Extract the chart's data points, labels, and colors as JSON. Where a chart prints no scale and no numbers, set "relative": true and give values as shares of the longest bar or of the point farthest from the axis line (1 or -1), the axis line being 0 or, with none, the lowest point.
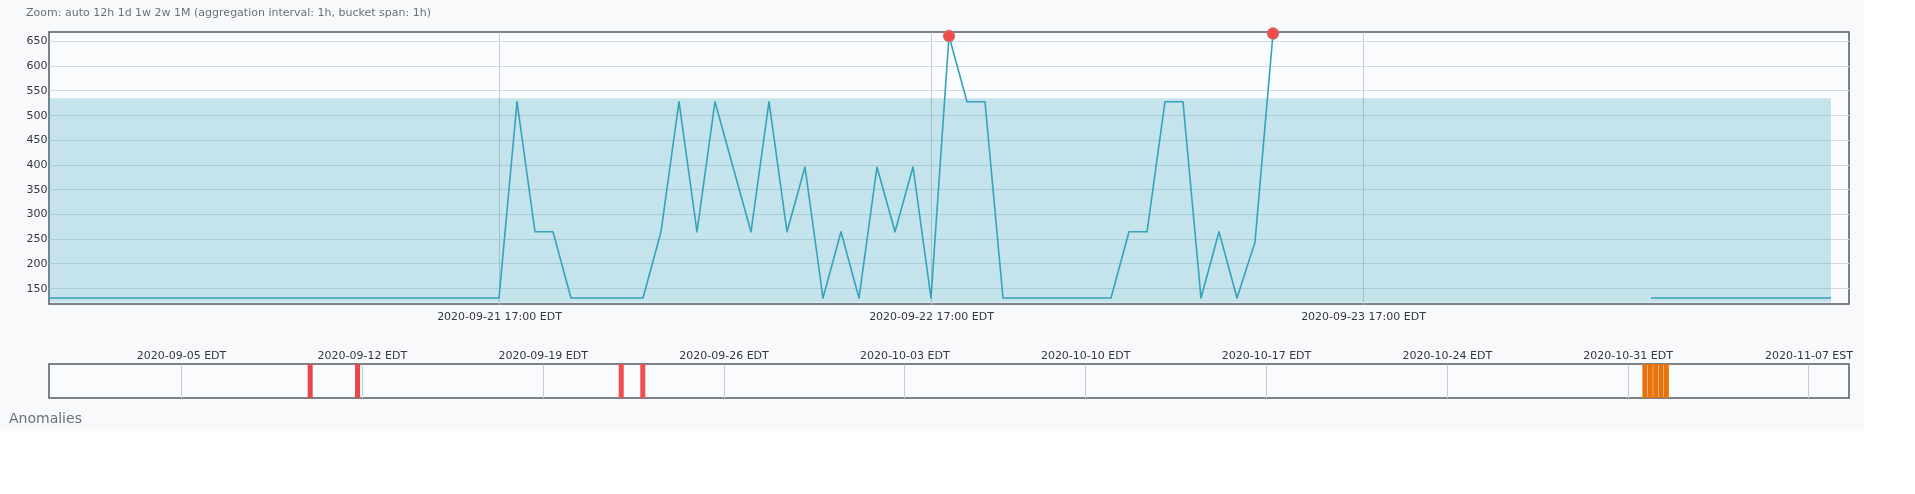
{
  "chart_data": [
    {
      "type": "line",
      "title": "Zoom: auto 12h 1d 1w 2w 1M   (aggregation interval: 1h, bucket span: 1h)",
      "x": [
        "2020-09-20T16:00",
        "2020-09-20T17:00",
        "2020-09-20T18:00",
        "2020-09-20T19:00",
        "2020-09-20T20:00",
        "2020-09-20T21:00",
        "2020-09-20T22:00",
        "2020-09-20T23:00",
        "2020-09-21T00:00",
        "2020-09-21T01:00",
        "2020-09-21T02:00",
        "2020-09-21T03:00",
        "2020-09-21T04:00",
        "2020-09-21T05:00",
        "2020-09-21T06:00",
        "2020-09-21T07:00",
        "2020-09-21T08:00",
        "2020-09-21T09:00",
        "2020-09-21T10:00",
        "2020-09-21T11:00",
        "2020-09-21T12:00",
        "2020-09-21T13:00",
        "2020-09-21T14:00",
        "2020-09-21T15:00",
        "2020-09-21T16:00",
        "2020-09-21T17:00",
        "2020-09-21T18:00",
        "2020-09-21T19:00",
        "2020-09-21T20:00",
        "2020-09-21T21:00",
        "2020-09-21T22:00",
        "2020-09-21T23:00",
        "2020-09-22T00:00",
        "2020-09-22T01:00",
        "2020-09-22T02:00",
        "2020-09-22T03:00",
        "2020-09-22T04:00",
        "2020-09-22T05:00",
        "2020-09-22T06:00",
        "2020-09-22T07:00",
        "2020-09-22T08:00",
        "2020-09-22T09:00",
        "2020-09-22T10:00",
        "2020-09-22T11:00",
        "2020-09-22T12:00",
        "2020-09-22T13:00",
        "2020-09-22T14:00",
        "2020-09-22T15:00",
        "2020-09-22T16:00",
        "2020-09-22T17:00",
        "2020-09-22T18:00",
        "2020-09-22T19:00",
        "2020-09-22T20:00",
        "2020-09-22T21:00",
        "2020-09-22T22:00",
        "2020-09-22T23:00",
        "2020-09-23T00:00",
        "2020-09-23T01:00",
        "2020-09-23T02:00",
        "2020-09-23T03:00",
        "2020-09-23T04:00",
        "2020-09-23T05:00",
        "2020-09-23T06:00",
        "2020-09-23T07:00",
        "2020-09-23T08:00",
        "2020-09-23T09:00",
        "2020-09-23T10:00",
        "2020-09-23T11:00",
        "2020-09-23T12:00",
        "2020-09-23T13:00",
        "2020-09-23T14:00",
        "2020-09-23T15:00",
        "2020-09-23T16:00",
        "2020-09-23T17:00",
        "2020-09-23T18:00",
        "2020-09-23T19:00",
        "2020-09-23T20:00",
        "2020-09-23T21:00",
        "2020-09-23T22:00",
        "2020-09-23T23:00",
        "2020-09-24T00:00",
        "2020-09-24T01:00",
        "2020-09-24T02:00",
        "2020-09-24T03:00",
        "2020-09-24T04:00",
        "2020-09-24T05:00",
        "2020-09-24T06:00",
        "2020-09-24T07:00",
        "2020-09-24T08:00",
        "2020-09-24T09:00",
        "2020-09-24T10:00",
        "2020-09-24T11:00",
        "2020-09-24T12:00",
        "2020-09-24T13:00",
        "2020-09-24T14:00",
        "2020-09-24T15:00",
        "2020-09-24T16:00",
        "2020-09-24T17:00",
        "2020-09-24T18:00",
        "2020-09-24T19:00"
      ],
      "series": [
        {
          "type": "line",
          "color": "#35a3ba",
          "values": [
            130,
            130,
            130,
            130,
            130,
            130,
            130,
            130,
            130,
            130,
            130,
            130,
            130,
            130,
            130,
            130,
            130,
            130,
            130,
            130,
            130,
            130,
            130,
            130,
            130,
            130,
            527,
            264,
            264,
            130,
            130,
            130,
            130,
            130,
            264,
            527,
            264,
            527,
            395,
            264,
            527,
            264,
            395,
            130,
            264,
            130,
            395,
            264,
            395,
            130,
            660,
            527,
            527,
            130,
            130,
            130,
            130,
            130,
            130,
            130,
            264,
            264,
            527,
            527,
            130,
            264,
            130,
            243,
            665,
            null,
            null,
            null,
            null,
            null,
            null,
            null,
            null,
            null,
            null,
            null,
            null,
            null,
            null,
            null,
            null,
            null,
            null,
            null,
            null,
            130,
            130,
            130,
            130,
            130,
            130,
            130,
            130,
            130,
            130,
            130
          ],
          "lower": [
            121,
            121,
            121,
            121,
            121,
            121,
            121,
            121,
            121,
            121,
            121,
            121,
            121,
            121,
            121,
            121,
            121,
            121,
            121,
            121,
            121,
            121,
            121,
            121,
            121,
            121,
            121,
            121,
            121,
            121,
            121,
            121,
            121,
            121,
            121,
            121,
            121,
            121,
            121,
            121,
            121,
            121,
            121,
            121,
            121,
            121,
            121,
            121,
            121,
            121,
            121,
            121,
            121,
            121,
            121,
            121,
            121,
            121,
            121,
            121,
            121,
            121,
            121,
            121,
            121,
            121,
            121,
            121,
            121,
            121,
            121,
            121,
            121,
            121,
            121,
            121,
            121,
            121,
            121,
            121,
            121,
            121,
            121,
            121,
            121,
            121,
            121,
            121,
            121,
            121,
            121,
            121,
            121,
            121,
            121,
            121,
            121,
            121,
            121,
            121
          ],
          "upper": [
            534,
            534,
            534,
            534,
            534,
            534,
            534,
            534,
            534,
            534,
            534,
            534,
            534,
            534,
            534,
            534,
            534,
            534,
            534,
            534,
            534,
            534,
            534,
            534,
            534,
            534,
            534,
            534,
            534,
            534,
            534,
            534,
            534,
            534,
            534,
            534,
            534,
            534,
            534,
            534,
            534,
            534,
            534,
            534,
            534,
            534,
            534,
            534,
            534,
            534,
            534,
            534,
            534,
            534,
            534,
            534,
            534,
            534,
            534,
            534,
            534,
            534,
            534,
            534,
            534,
            534,
            534,
            534,
            534,
            534,
            534,
            534,
            534,
            534,
            534,
            534,
            534,
            534,
            534,
            534,
            534,
            534,
            534,
            534,
            534,
            534,
            534,
            534,
            534,
            534,
            534,
            534,
            534,
            534,
            534,
            534,
            534,
            534,
            534,
            534
          ]
        },
        {
          "type": "scatter",
          "marker": "circle",
          "color": "#f04c4c",
          "x": [
            "2020-09-22T18:00",
            "2020-09-23T12:00"
          ],
          "values": [
            660,
            665
          ]
        }
      ],
      "xlim": [
        "2020-09-20T16:00",
        "2020-09-24T20:00"
      ],
      "xticks": [
        {
          "value": "2020-09-21T17:00",
          "label": "2020-09-21 17:00 EDT"
        },
        {
          "value": "2020-09-22T17:00",
          "label": "2020-09-22 17:00 EDT"
        },
        {
          "value": "2020-09-23T17:00",
          "label": "2020-09-23 17:00 EDT"
        }
      ],
      "ylim": [
        118,
        668
      ],
      "yticks": [
        150,
        200,
        250,
        300,
        350,
        400,
        450,
        500,
        550,
        600,
        650
      ],
      "grid": true,
      "line_style": "solid"
    },
    {
      "type": "bar",
      "relative": true,
      "tick_labels": "x",
      "annotations": [
        "Anomalies"
      ],
      "x": [
        "2020-09-10T00:00",
        "2020-09-11T20:00",
        "2020-09-22T01:00",
        "2020-09-22T21:00",
        "2020-10-31T16:00",
        "2020-10-31T21:00",
        "2020-11-01T02:00",
        "2020-11-01T07:00",
        "2020-11-01T12:00"
      ],
      "values": [
        1,
        1,
        1,
        1,
        1,
        1,
        1,
        1,
        1
      ],
      "colors": [
        "#e7474a",
        "#e7474a",
        "#f24e4e",
        "#f24e4e",
        "#e8720c",
        "#e8720c",
        "#e8720c",
        "#e8720c",
        "#e8720c"
      ],
      "xlim": [
        "2020-08-31T02:00",
        "2020-11-08T09:00"
      ],
      "xticks": [
        {
          "value": "2020-09-05",
          "label": "2020-09-05 EDT"
        },
        {
          "value": "2020-09-12",
          "label": "2020-09-12 EDT"
        },
        {
          "value": "2020-09-19",
          "label": "2020-09-19 EDT"
        },
        {
          "value": "2020-09-26",
          "label": "2020-09-26 EDT"
        },
        {
          "value": "2020-10-03",
          "label": "2020-10-03 EDT"
        },
        {
          "value": "2020-10-10",
          "label": "2020-10-10 EDT"
        },
        {
          "value": "2020-10-17",
          "label": "2020-10-17 EDT"
        },
        {
          "value": "2020-10-24",
          "label": "2020-10-24 EDT"
        },
        {
          "value": "2020-10-31",
          "label": "2020-10-31 EDT"
        },
        {
          "value": "2020-11-07",
          "label": "2020-11-07 EST"
        }
      ],
      "grid": "x"
    }
  ]
}
